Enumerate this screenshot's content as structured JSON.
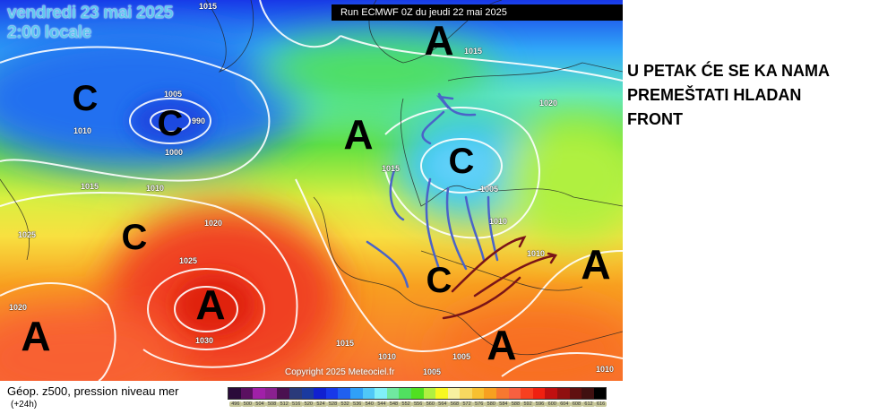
{
  "map": {
    "date_line": "vendredi 23 mai 2025",
    "time_line": "2:00 locale",
    "run_info": "Run ECMWF 0Z du jeudi 22 mai 2025",
    "copyright": "Copyright 2025 Meteociel.fr",
    "pressure_labels": [
      "1015",
      "1015",
      "1005",
      "990",
      "1000",
      "1010",
      "1015",
      "1010",
      "1025",
      "1020",
      "1025",
      "1020",
      "1030",
      "1015",
      "1005",
      "1010",
      "1010",
      "1020",
      "1015",
      "1010",
      "1005",
      "1005",
      "1010"
    ],
    "systems": [
      "A",
      "C",
      "C",
      "A",
      "C",
      "C",
      "A",
      "A",
      "C",
      "A",
      "A"
    ],
    "annotation_colors": {
      "arrows_blue": "#4a64c8",
      "arrows_red": "#7a1418"
    }
  },
  "caption": {
    "lines": [
      "U PETAK ĆE SE KA NAMA",
      "PREMEŠTATI HLADAN",
      "FRONT"
    ]
  },
  "legend": {
    "title": "Géop. z500, pression niveau mer",
    "subtitle": "(+24h)",
    "values": [
      "496",
      "500",
      "504",
      "508",
      "512",
      "516",
      "520",
      "524",
      "528",
      "532",
      "536",
      "540",
      "544",
      "548",
      "552",
      "556",
      "560",
      "564",
      "568",
      "572",
      "576",
      "580",
      "584",
      "588",
      "592",
      "596",
      "600",
      "604",
      "608",
      "612",
      "616"
    ],
    "colors": [
      "#2a0a3a",
      "#5a1060",
      "#a020a8",
      "#8a2090",
      "#4a1050",
      "#2a3a7a",
      "#1a3aa0",
      "#1020d0",
      "#1838e8",
      "#2060f0",
      "#30a0f8",
      "#50c8f8",
      "#80f0f8",
      "#70e8a0",
      "#50e060",
      "#50e020",
      "#b0f040",
      "#f8f820",
      "#f8f0a0",
      "#f8d860",
      "#f8c030",
      "#f8a020",
      "#f87830",
      "#f86040",
      "#f84020",
      "#f02010",
      "#c01010",
      "#901010",
      "#601010",
      "#401010",
      "#000000"
    ]
  }
}
